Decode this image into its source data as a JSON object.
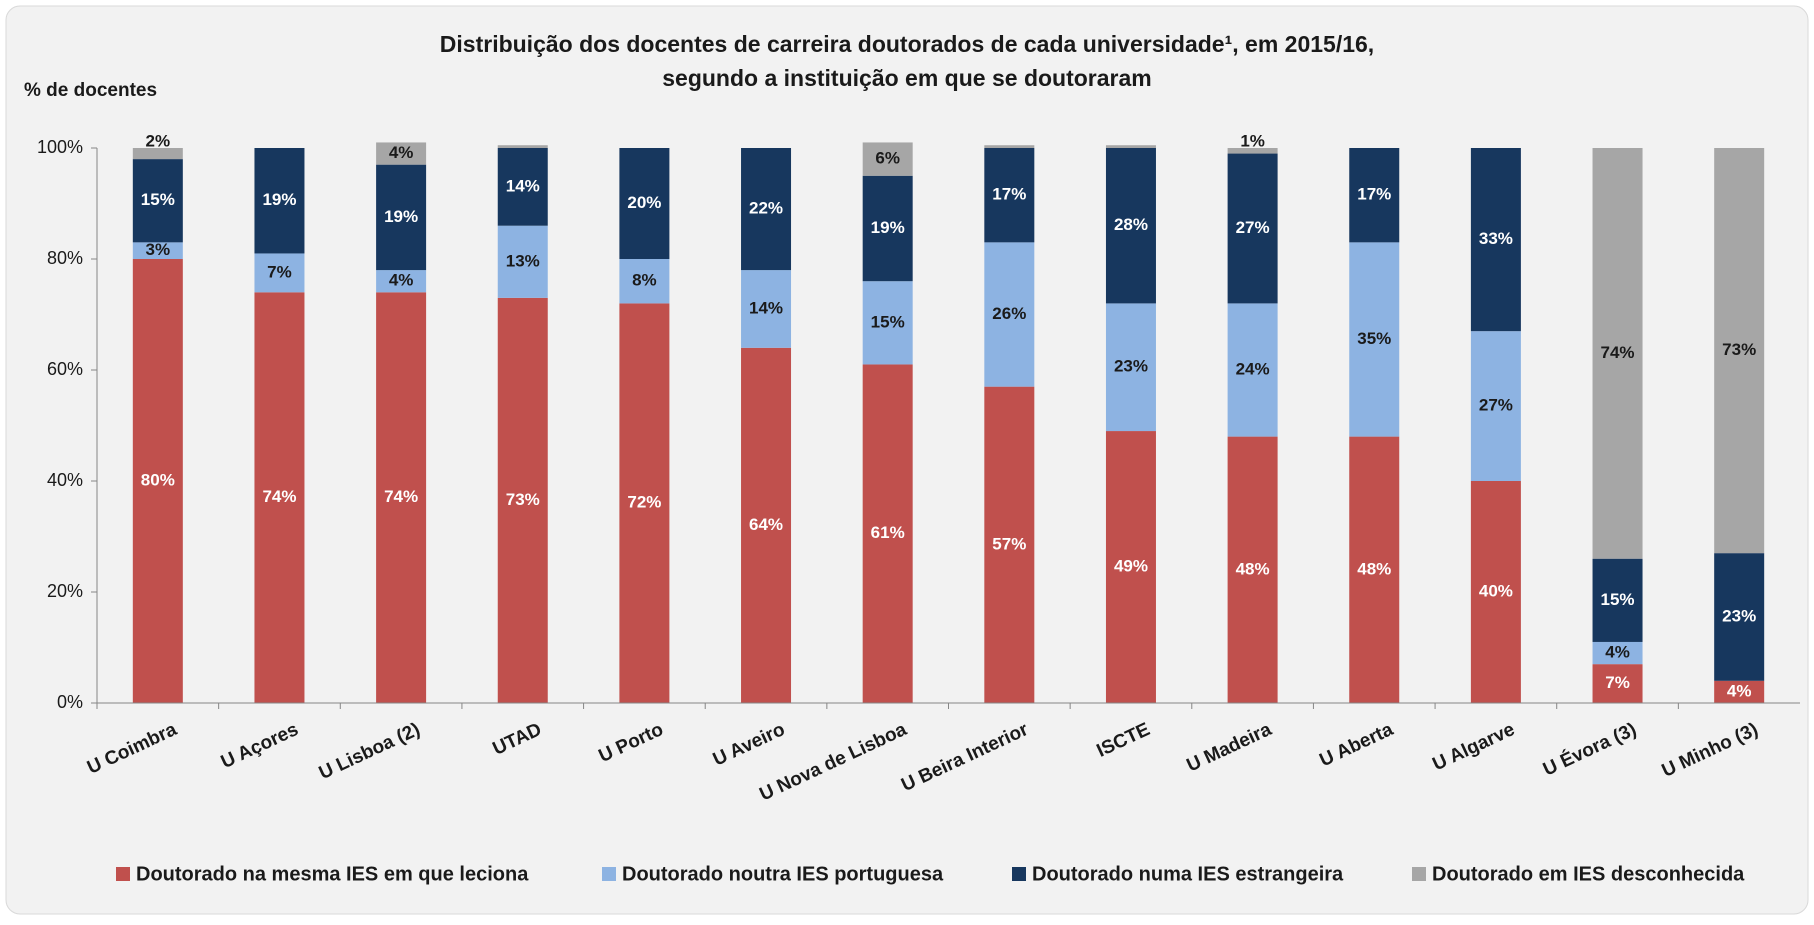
{
  "chart_data": {
    "type": "stacked_bar",
    "title_lines": [
      "Distribuição dos docentes de carreira doutorados de cada universidade¹, em 2015/16,",
      "segundo a instituição em que se doutoraram"
    ],
    "y_label": "% de docentes",
    "categories": [
      "U Coimbra",
      "U Açores",
      "U Lisboa (2)",
      "UTAD",
      "U Porto",
      "U Aveiro",
      "U Nova de Lisboa",
      "U Beira Interior",
      "ISCTE",
      "U Madeira",
      "U Aberta",
      "U Algarve",
      "U Évora (3)",
      "U Minho (3)"
    ],
    "series": [
      {
        "name": "Doutorado na mesma IES em que leciona",
        "color": "#c0504d",
        "label_color": "#ffffff",
        "values": [
          80,
          74,
          74,
          73,
          72,
          64,
          61,
          57,
          49,
          48,
          48,
          40,
          7,
          4
        ],
        "value_labels": [
          "80%",
          "74%",
          "74%",
          "73%",
          "72%",
          "64%",
          "61%",
          "57%",
          "49%",
          "48%",
          "48%",
          "40%",
          "7%",
          "4%"
        ]
      },
      {
        "name": "Doutorado noutra IES portuguesa",
        "color": "#8db3e2",
        "label_color": "#1a1a1a",
        "values": [
          3,
          7,
          4,
          13,
          8,
          14,
          15,
          26,
          23,
          24,
          35,
          27,
          4,
          0
        ],
        "value_labels": [
          "3%",
          "7%",
          "4%",
          "13%",
          "8%",
          "14%",
          "15%",
          "26%",
          "23%",
          "24%",
          "35%",
          "27%",
          "4%",
          null
        ]
      },
      {
        "name": "Doutorado numa IES estrangeira",
        "color": "#17375e",
        "label_color": "#ffffff",
        "values": [
          15,
          19,
          19,
          14,
          20,
          22,
          19,
          17,
          28,
          27,
          17,
          33,
          15,
          23
        ],
        "value_labels": [
          "15%",
          "19%",
          "19%",
          "14%",
          "20%",
          "22%",
          "19%",
          "17%",
          "28%",
          "27%",
          "17%",
          "33%",
          "15%",
          "23%"
        ]
      },
      {
        "name": "Doutorado em IES desconhecida",
        "color": "#a6a6a6",
        "label_color": "#1a1a1a",
        "values": [
          2,
          0,
          4,
          0.5,
          0,
          0,
          6,
          0.5,
          0.5,
          1,
          0,
          0,
          74,
          73
        ],
        "value_labels": [
          "2%",
          null,
          "4%",
          null,
          null,
          null,
          "6%",
          null,
          null,
          "1%",
          null,
          null,
          "74%",
          "73%"
        ]
      }
    ],
    "ylim": [
      0,
      100
    ],
    "yticks": [
      {
        "value": 0,
        "label": "0%"
      },
      {
        "value": 20,
        "label": "20%"
      },
      {
        "value": 40,
        "label": "40%"
      },
      {
        "value": 60,
        "label": "60%"
      },
      {
        "value": 80,
        "label": "80%"
      },
      {
        "value": 100,
        "label": "100%"
      }
    ]
  }
}
